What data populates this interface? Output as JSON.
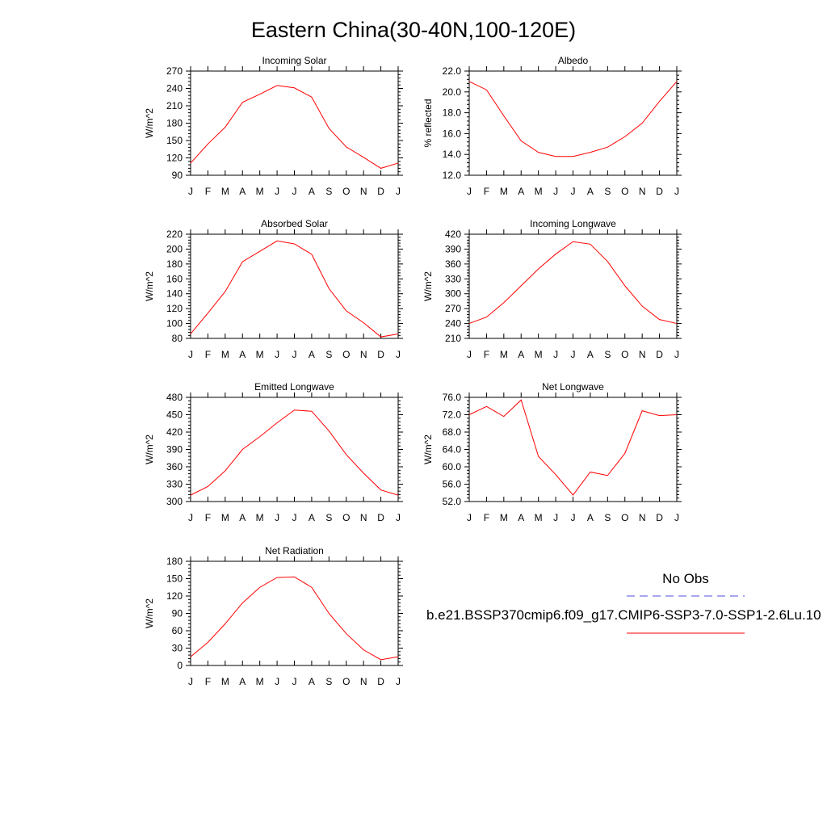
{
  "title": "Eastern China(30-40N,100-120E)",
  "colors": {
    "model_line": "#ff0000",
    "obs_line": "#4f4fd9",
    "axis": "#000000"
  },
  "legend": {
    "obs_label": "No Obs",
    "model_label": "b.e21.BSSP370cmip6.f09_g17.CMIP6-SSP3-7.0-SSP1-2.6Lu.10"
  },
  "chart_data": [
    {
      "type": "line",
      "title": "Incoming Solar",
      "ylabel": "W/m^2",
      "categories": [
        "J",
        "F",
        "M",
        "A",
        "M",
        "J",
        "J",
        "A",
        "S",
        "O",
        "N",
        "D",
        "J"
      ],
      "ylim": [
        90,
        270
      ],
      "yticks": [
        90,
        120,
        150,
        180,
        210,
        240,
        270
      ],
      "ytick_labels": [
        "90",
        "120",
        "150",
        "180",
        "210",
        "240",
        "270"
      ],
      "values": [
        111,
        144,
        173,
        216,
        230,
        245,
        241,
        225,
        171,
        139,
        121,
        102,
        111
      ]
    },
    {
      "type": "line",
      "title": "Albedo",
      "ylabel": "% reflected",
      "categories": [
        "J",
        "F",
        "M",
        "A",
        "M",
        "J",
        "J",
        "A",
        "S",
        "O",
        "N",
        "D",
        "J"
      ],
      "ylim": [
        12,
        22
      ],
      "yticks": [
        12,
        14,
        16,
        18,
        20,
        22
      ],
      "ytick_labels": [
        "12.0",
        "14.0",
        "16.0",
        "18.0",
        "20.0",
        "22.0"
      ],
      "values": [
        21.0,
        20.2,
        17.7,
        15.3,
        14.2,
        13.8,
        13.8,
        14.2,
        14.7,
        15.7,
        17.0,
        19.1,
        21.0
      ]
    },
    {
      "type": "line",
      "title": "Absorbed Solar",
      "ylabel": "W/m^2",
      "categories": [
        "J",
        "F",
        "M",
        "A",
        "M",
        "J",
        "J",
        "A",
        "S",
        "O",
        "N",
        "D",
        "J"
      ],
      "ylim": [
        80,
        220
      ],
      "yticks": [
        80,
        100,
        120,
        140,
        160,
        180,
        200,
        220
      ],
      "ytick_labels": [
        "80",
        "100",
        "120",
        "140",
        "160",
        "180",
        "200",
        "220"
      ],
      "values": [
        86,
        114,
        143,
        183,
        197,
        211,
        207,
        193,
        147,
        117,
        101,
        82,
        86
      ]
    },
    {
      "type": "line",
      "title": "Incoming Longwave",
      "ylabel": "W/m^2",
      "categories": [
        "J",
        "F",
        "M",
        "A",
        "M",
        "J",
        "J",
        "A",
        "S",
        "O",
        "N",
        "D",
        "J"
      ],
      "ylim": [
        210,
        420
      ],
      "yticks": [
        210,
        240,
        270,
        300,
        330,
        360,
        390,
        420
      ],
      "ytick_labels": [
        "210",
        "240",
        "270",
        "300",
        "330",
        "360",
        "390",
        "420"
      ],
      "values": [
        240,
        253,
        282,
        316,
        350,
        380,
        405,
        400,
        365,
        316,
        275,
        248,
        240
      ]
    },
    {
      "type": "line",
      "title": "Emitted Longwave",
      "ylabel": "W/m^2",
      "categories": [
        "J",
        "F",
        "M",
        "A",
        "M",
        "J",
        "J",
        "A",
        "S",
        "O",
        "N",
        "D",
        "J"
      ],
      "ylim": [
        300,
        480
      ],
      "yticks": [
        300,
        330,
        360,
        390,
        420,
        450,
        480
      ],
      "ytick_labels": [
        "300",
        "330",
        "360",
        "390",
        "420",
        "450",
        "480"
      ],
      "values": [
        311,
        326,
        353,
        390,
        412,
        436,
        458,
        456,
        422,
        381,
        349,
        320,
        311
      ]
    },
    {
      "type": "line",
      "title": "Net Longwave",
      "ylabel": "W/m^2",
      "categories": [
        "J",
        "F",
        "M",
        "A",
        "M",
        "J",
        "J",
        "A",
        "S",
        "O",
        "N",
        "D",
        "J"
      ],
      "ylim": [
        52,
        76
      ],
      "yticks": [
        52,
        56,
        60,
        64,
        68,
        72,
        76
      ],
      "ytick_labels": [
        "52.0",
        "56.0",
        "60.0",
        "64.0",
        "68.0",
        "72.0",
        "76.0"
      ],
      "values": [
        72.0,
        73.9,
        71.6,
        75.4,
        62.4,
        58.2,
        53.5,
        58.8,
        58.0,
        63.1,
        72.9,
        71.8,
        72.0
      ]
    },
    {
      "type": "line",
      "title": "Net Radiation",
      "ylabel": "W/m^2",
      "categories": [
        "J",
        "F",
        "M",
        "A",
        "M",
        "J",
        "J",
        "A",
        "S",
        "O",
        "N",
        "D",
        "J"
      ],
      "ylim": [
        0,
        180
      ],
      "yticks": [
        0,
        30,
        60,
        90,
        120,
        150,
        180
      ],
      "ytick_labels": [
        "0",
        "30",
        "60",
        "90",
        "120",
        "150",
        "180"
      ],
      "values": [
        15,
        40,
        72,
        108,
        135,
        152,
        153,
        135,
        90,
        55,
        27,
        10,
        15
      ]
    }
  ]
}
